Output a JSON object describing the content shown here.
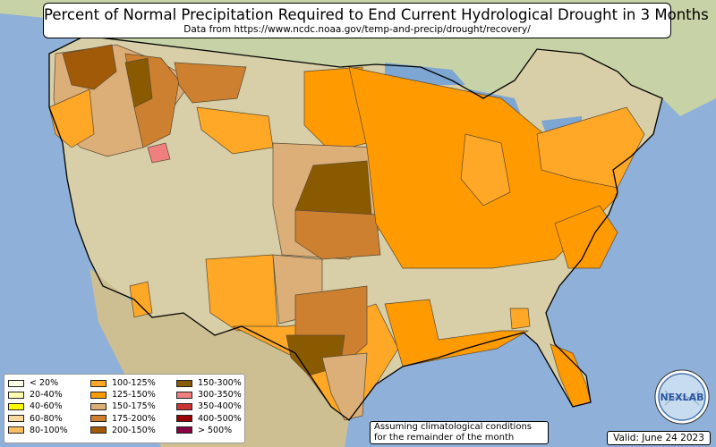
{
  "title": "Percent of Normal Precipitation Required to End Current Hydrological Drought in 3 Months",
  "subtitle": "Data from https://www.ncdc.noaa.gov/temp-and-precip/drought/recovery/",
  "legend": [
    {
      "label": "< 20%",
      "color": "#ffffe8"
    },
    {
      "label": "20-40%",
      "color": "#ffffb0"
    },
    {
      "label": "40-60%",
      "color": "#ffff00"
    },
    {
      "label": "60-80%",
      "color": "#ffd9a0"
    },
    {
      "label": "80-100%",
      "color": "#ffbf60"
    },
    {
      "label": "100-125%",
      "color": "#ffa726"
    },
    {
      "label": "125-150%",
      "color": "#ff9a00"
    },
    {
      "label": "150-175%",
      "color": "#dcae78"
    },
    {
      "label": "175-200%",
      "color": "#cc8030"
    },
    {
      "label": "200-150%",
      "color": "#a05a08"
    },
    {
      "label": "150-300%",
      "color": "#8a5a00"
    },
    {
      "label": "300-350%",
      "color": "#f08080"
    },
    {
      "label": "350-400%",
      "color": "#cc3333"
    },
    {
      "label": "400-500%",
      "color": "#990000"
    },
    {
      "label": "> 500%",
      "color": "#880044"
    }
  ],
  "footnote": {
    "line1": "Assuming climatological conditions",
    "line2": "for the remainder of the month"
  },
  "valid": "Valid: June 24 2023",
  "logo_text": "NEXLAB",
  "colors": {
    "water": "#8fb0d8",
    "land": "#d8cfa8",
    "border": "#000000",
    "division_outline": "#5a4a30"
  }
}
